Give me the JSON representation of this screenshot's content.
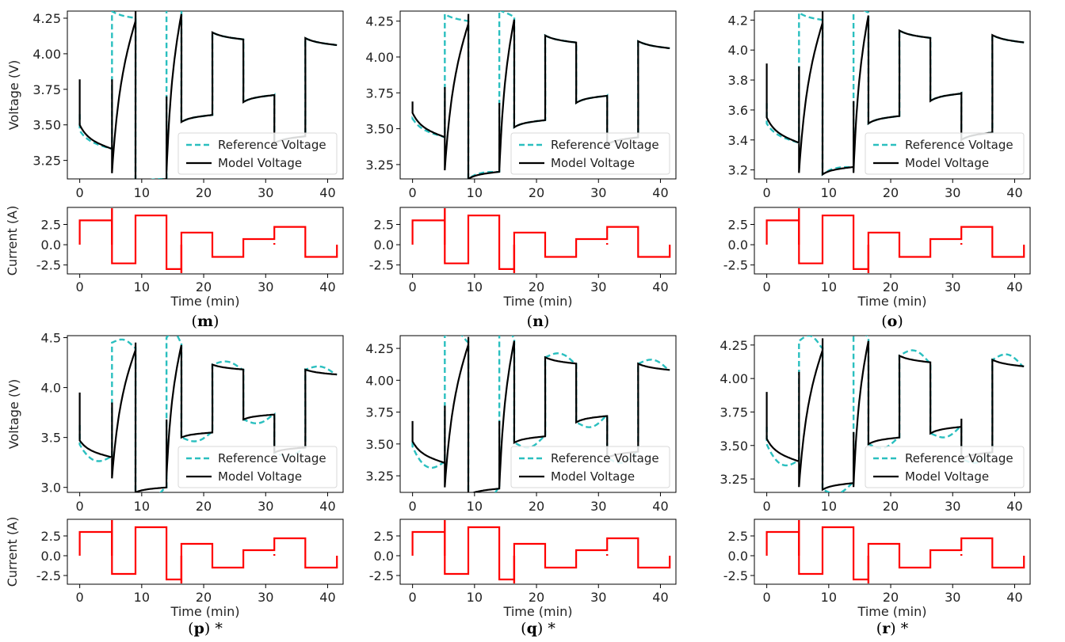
{
  "colors": {
    "reference": "#2abfbf",
    "model": "#000000",
    "current": "#ff0000",
    "axis": "#000000"
  },
  "legend": {
    "reference": "Reference Voltage",
    "model": "Model Voltage"
  },
  "labels": {
    "voltage": "Voltage (V)",
    "current": "Current (A)",
    "time": "Time (min)"
  },
  "chart_data": [
    {
      "id": "m",
      "caption": "(m)",
      "starred": false,
      "type": "line",
      "voltage": {
        "ylim": [
          3.12,
          4.3
        ],
        "yticks": [
          3.25,
          3.5,
          3.75,
          4.0,
          4.25
        ],
        "mode": "model_tracks",
        "params": {
          "rest": [
            3.82,
            3.92,
            4.3,
            3.8,
            4.05,
            3.82,
            3.8,
            3.8
          ],
          "ends": [
            3.33,
            4.25,
            3.12,
            4.3,
            3.57,
            4.1,
            3.71,
            3.42,
            4.06
          ],
          "dips": [
            3.16,
            3.16
          ]
        }
      },
      "current": {
        "ylim": [
          -3.6,
          4.6
        ],
        "yticks": [
          -2.5,
          0.0,
          2.5
        ]
      }
    },
    {
      "id": "n",
      "caption": "(n)",
      "starred": false,
      "type": "line",
      "voltage": {
        "ylim": [
          3.15,
          4.32
        ],
        "yticks": [
          3.25,
          3.5,
          3.75,
          4.0,
          4.25
        ],
        "mode": "model_tracks",
        "params": {
          "rest": [
            3.69,
            3.89,
            4.3,
            3.78,
            4.06,
            3.85,
            3.81,
            3.8
          ],
          "ends": [
            3.44,
            4.25,
            3.2,
            4.28,
            3.56,
            4.1,
            3.73,
            3.44,
            4.06
          ],
          "dips": [
            3.21,
            3.2
          ]
        }
      },
      "current": {
        "ylim": [
          -3.6,
          4.6
        ],
        "yticks": [
          -2.5,
          0.0,
          2.5
        ]
      }
    },
    {
      "id": "o",
      "caption": "(o)",
      "starred": false,
      "type": "line",
      "voltage": {
        "ylim": [
          3.14,
          4.26
        ],
        "yticks": [
          3.2,
          3.4,
          3.6,
          3.8,
          4.0,
          4.2
        ],
        "mode": "model_tracks",
        "params": {
          "rest": [
            3.91,
            3.99,
            4.26,
            3.76,
            3.96,
            3.96,
            3.82,
            3.82
          ],
          "ends": [
            3.38,
            4.2,
            3.22,
            4.25,
            3.56,
            4.08,
            3.71,
            3.45,
            4.05
          ],
          "dips": [
            3.18,
            3.18
          ]
        }
      },
      "current": {
        "ylim": [
          -3.6,
          4.6
        ],
        "yticks": [
          -2.5,
          0.0,
          2.5
        ]
      }
    },
    {
      "id": "p",
      "caption": "(p)",
      "starred": true,
      "type": "line",
      "voltage": {
        "ylim": [
          2.95,
          4.52
        ],
        "yticks": [
          3.0,
          3.5,
          4.0,
          4.5
        ],
        "mode": "model_overshoots",
        "params": {
          "rest": [
            3.95,
            3.95,
            4.45,
            3.78,
            4.0,
            3.85,
            3.72,
            3.72
          ],
          "ends": [
            3.3,
            4.4,
            3.0,
            4.45,
            3.55,
            4.18,
            3.73,
            3.4,
            4.13
          ],
          "dips": [
            3.09,
            3.1
          ]
        }
      },
      "current": {
        "ylim": [
          -3.6,
          4.6
        ],
        "yticks": [
          -2.5,
          0.0,
          2.5
        ]
      }
    },
    {
      "id": "q",
      "caption": "(q)",
      "starred": true,
      "type": "line",
      "voltage": {
        "ylim": [
          3.12,
          4.35
        ],
        "yticks": [
          3.25,
          3.5,
          3.75,
          4.0,
          4.25
        ],
        "mode": "model_overshoots",
        "params": {
          "rest": [
            3.68,
            3.9,
            4.34,
            3.78,
            3.98,
            3.88,
            3.72,
            3.72
          ],
          "ends": [
            3.35,
            4.3,
            3.15,
            4.33,
            3.56,
            4.13,
            3.72,
            3.44,
            4.08
          ],
          "dips": [
            3.16,
            3.15
          ]
        }
      },
      "current": {
        "ylim": [
          -3.6,
          4.6
        ],
        "yticks": [
          -2.5,
          0.0,
          2.5
        ]
      }
    },
    {
      "id": "r",
      "caption": "(r)",
      "starred": true,
      "type": "line",
      "voltage": {
        "ylim": [
          3.15,
          4.32
        ],
        "yticks": [
          3.25,
          3.5,
          3.75,
          4.0,
          4.25
        ],
        "mode": "model_offset",
        "params": {
          "rest": [
            3.9,
            4.15,
            4.3,
            3.7,
            4.05,
            3.85,
            3.8,
            3.8
          ],
          "ends": [
            3.38,
            4.23,
            3.22,
            4.3,
            3.56,
            4.12,
            3.64,
            3.45,
            4.09
          ],
          "dips": [
            3.19,
            3.19
          ]
        }
      },
      "current": {
        "ylim": [
          -3.6,
          4.6
        ],
        "yticks": [
          -2.5,
          0.0,
          2.5
        ]
      }
    }
  ],
  "time_axis": {
    "xlim": [
      -2,
      42.5
    ],
    "xticks": [
      0,
      10,
      20,
      30,
      40
    ]
  },
  "current_profile": {
    "segments": [
      {
        "t0": 0,
        "t1": 5.2,
        "i": 3.0
      },
      {
        "t0": 5.2,
        "t1": 9.0,
        "i": -2.3
      },
      {
        "t0": 9.0,
        "t1": 14.0,
        "i": 3.6
      },
      {
        "t0": 14.0,
        "t1": 16.4,
        "i": -3.0
      },
      {
        "t0": 16.4,
        "t1": 21.4,
        "i": 1.5
      },
      {
        "t0": 21.4,
        "t1": 26.4,
        "i": -1.5
      },
      {
        "t0": 26.4,
        "t1": 31.4,
        "i": 0.7
      },
      {
        "t0": 31.4,
        "t1": 36.4,
        "i": 2.2
      },
      {
        "t0": 36.4,
        "t1": 41.5,
        "i": -1.5
      }
    ],
    "spikes": [
      {
        "t": 5.2,
        "i": 4.5
      },
      {
        "t": 16.4,
        "i": -3.5
      },
      {
        "t": 31.4,
        "i": 0.2
      }
    ]
  }
}
